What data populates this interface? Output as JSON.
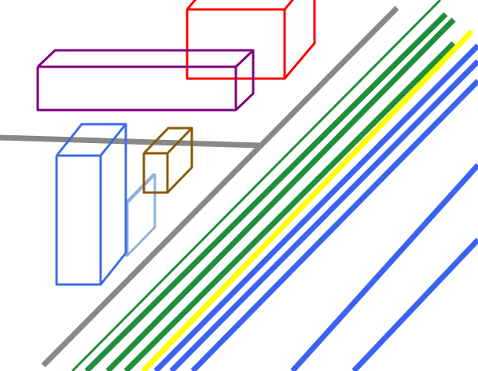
{
  "colors": {
    "background": "#ffffff",
    "road": "#888888",
    "lane_green": "#1f8f3a",
    "lane_yellow": "#ffff00",
    "lane_blue": "#3b63f0",
    "box_red": "#ff0000",
    "box_purple": "#800080",
    "box_blue": "#3b6cf0",
    "box_lightblue": "#8fb0d8",
    "box_brown": "#8b5a00"
  },
  "objects": [
    {
      "name": "road-edge",
      "color_key": "road"
    },
    {
      "name": "green-lane",
      "color_key": "lane_green"
    },
    {
      "name": "yellow-lane",
      "color_key": "lane_yellow"
    },
    {
      "name": "blue-lane",
      "color_key": "lane_blue"
    },
    {
      "name": "red-box",
      "color_key": "box_red"
    },
    {
      "name": "purple-box",
      "color_key": "box_purple"
    },
    {
      "name": "blue-box",
      "color_key": "box_blue"
    },
    {
      "name": "lightblue-box",
      "color_key": "box_lightblue"
    },
    {
      "name": "brown-box",
      "color_key": "box_brown"
    }
  ]
}
